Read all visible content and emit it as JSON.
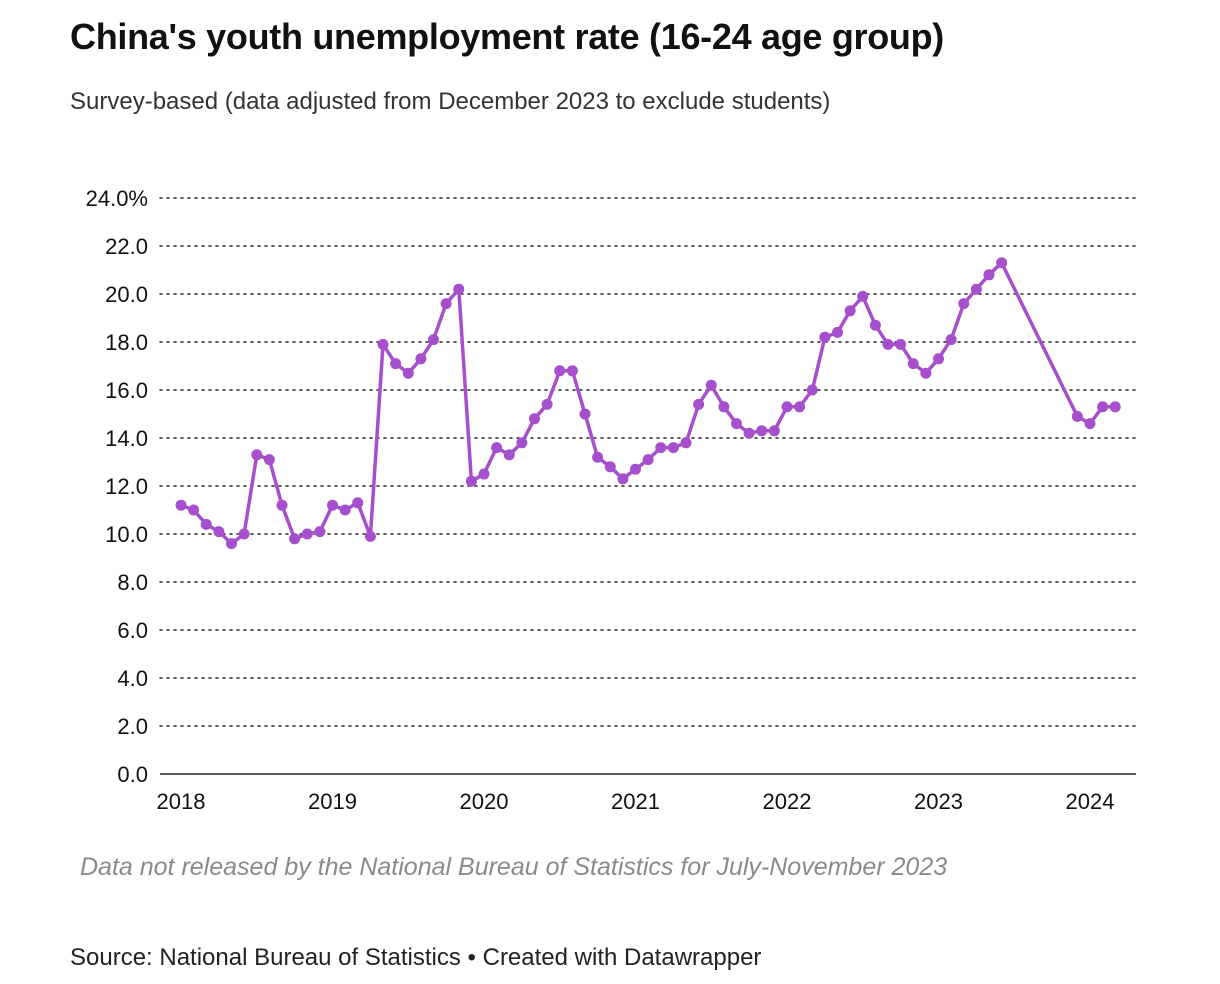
{
  "chart_data": {
    "type": "line",
    "title": "China's youth unemployment rate (16-24 age group)",
    "subtitle": "Survey-based (data adjusted from December 2023 to exclude students)",
    "annotation": "Data not released by the National Bureau of Statistics for July-November 2023",
    "source": "Source: National Bureau of Statistics • Created with Datawrapper",
    "xlabel": "",
    "ylabel": "",
    "ylim": [
      0,
      24
    ],
    "y_ticks": [
      0,
      2,
      4,
      6,
      8,
      10,
      12,
      14,
      16,
      18,
      20,
      22,
      24
    ],
    "y_tick_labels": [
      "0.0",
      "2.0",
      "4.0",
      "6.0",
      "8.0",
      "10.0",
      "12.0",
      "14.0",
      "16.0",
      "18.0",
      "20.0",
      "22.0",
      "24.0%"
    ],
    "x_ticks": [
      2018,
      2019,
      2020,
      2021,
      2022,
      2023,
      2024
    ],
    "x_tick_labels": [
      "2018",
      "2019",
      "2020",
      "2021",
      "2022",
      "2023",
      "2024"
    ],
    "grid": "horizontal-dotted",
    "color": "#a64fcc",
    "series": [
      {
        "name": "Youth unemployment rate (%)",
        "segments": [
          {
            "start": "2018-01",
            "values": [
              11.2,
              11.0,
              10.4,
              10.1,
              9.6,
              10.0,
              13.3,
              13.1,
              11.2,
              9.8,
              10.0,
              10.1,
              11.2,
              11.0,
              11.3,
              9.9,
              17.9,
              17.1,
              16.7,
              17.3,
              18.1,
              19.6,
              20.2,
              12.2,
              12.5,
              13.6,
              13.3,
              13.8,
              14.8,
              15.4,
              16.8,
              16.8,
              15.0,
              13.2,
              12.8,
              12.3,
              12.7,
              13.1,
              13.6,
              13.6,
              13.8,
              15.4,
              16.2,
              15.3,
              14.6,
              14.2,
              14.3,
              14.3,
              15.3,
              15.3,
              16.0,
              18.2,
              18.4,
              19.3,
              19.9,
              18.7,
              17.9,
              17.9,
              17.1,
              16.7,
              17.3,
              18.1,
              19.6,
              20.2,
              20.8,
              21.3
            ]
          },
          {
            "start": "2023-12",
            "values": [
              14.9,
              14.6,
              15.3,
              15.3
            ]
          }
        ]
      }
    ]
  }
}
